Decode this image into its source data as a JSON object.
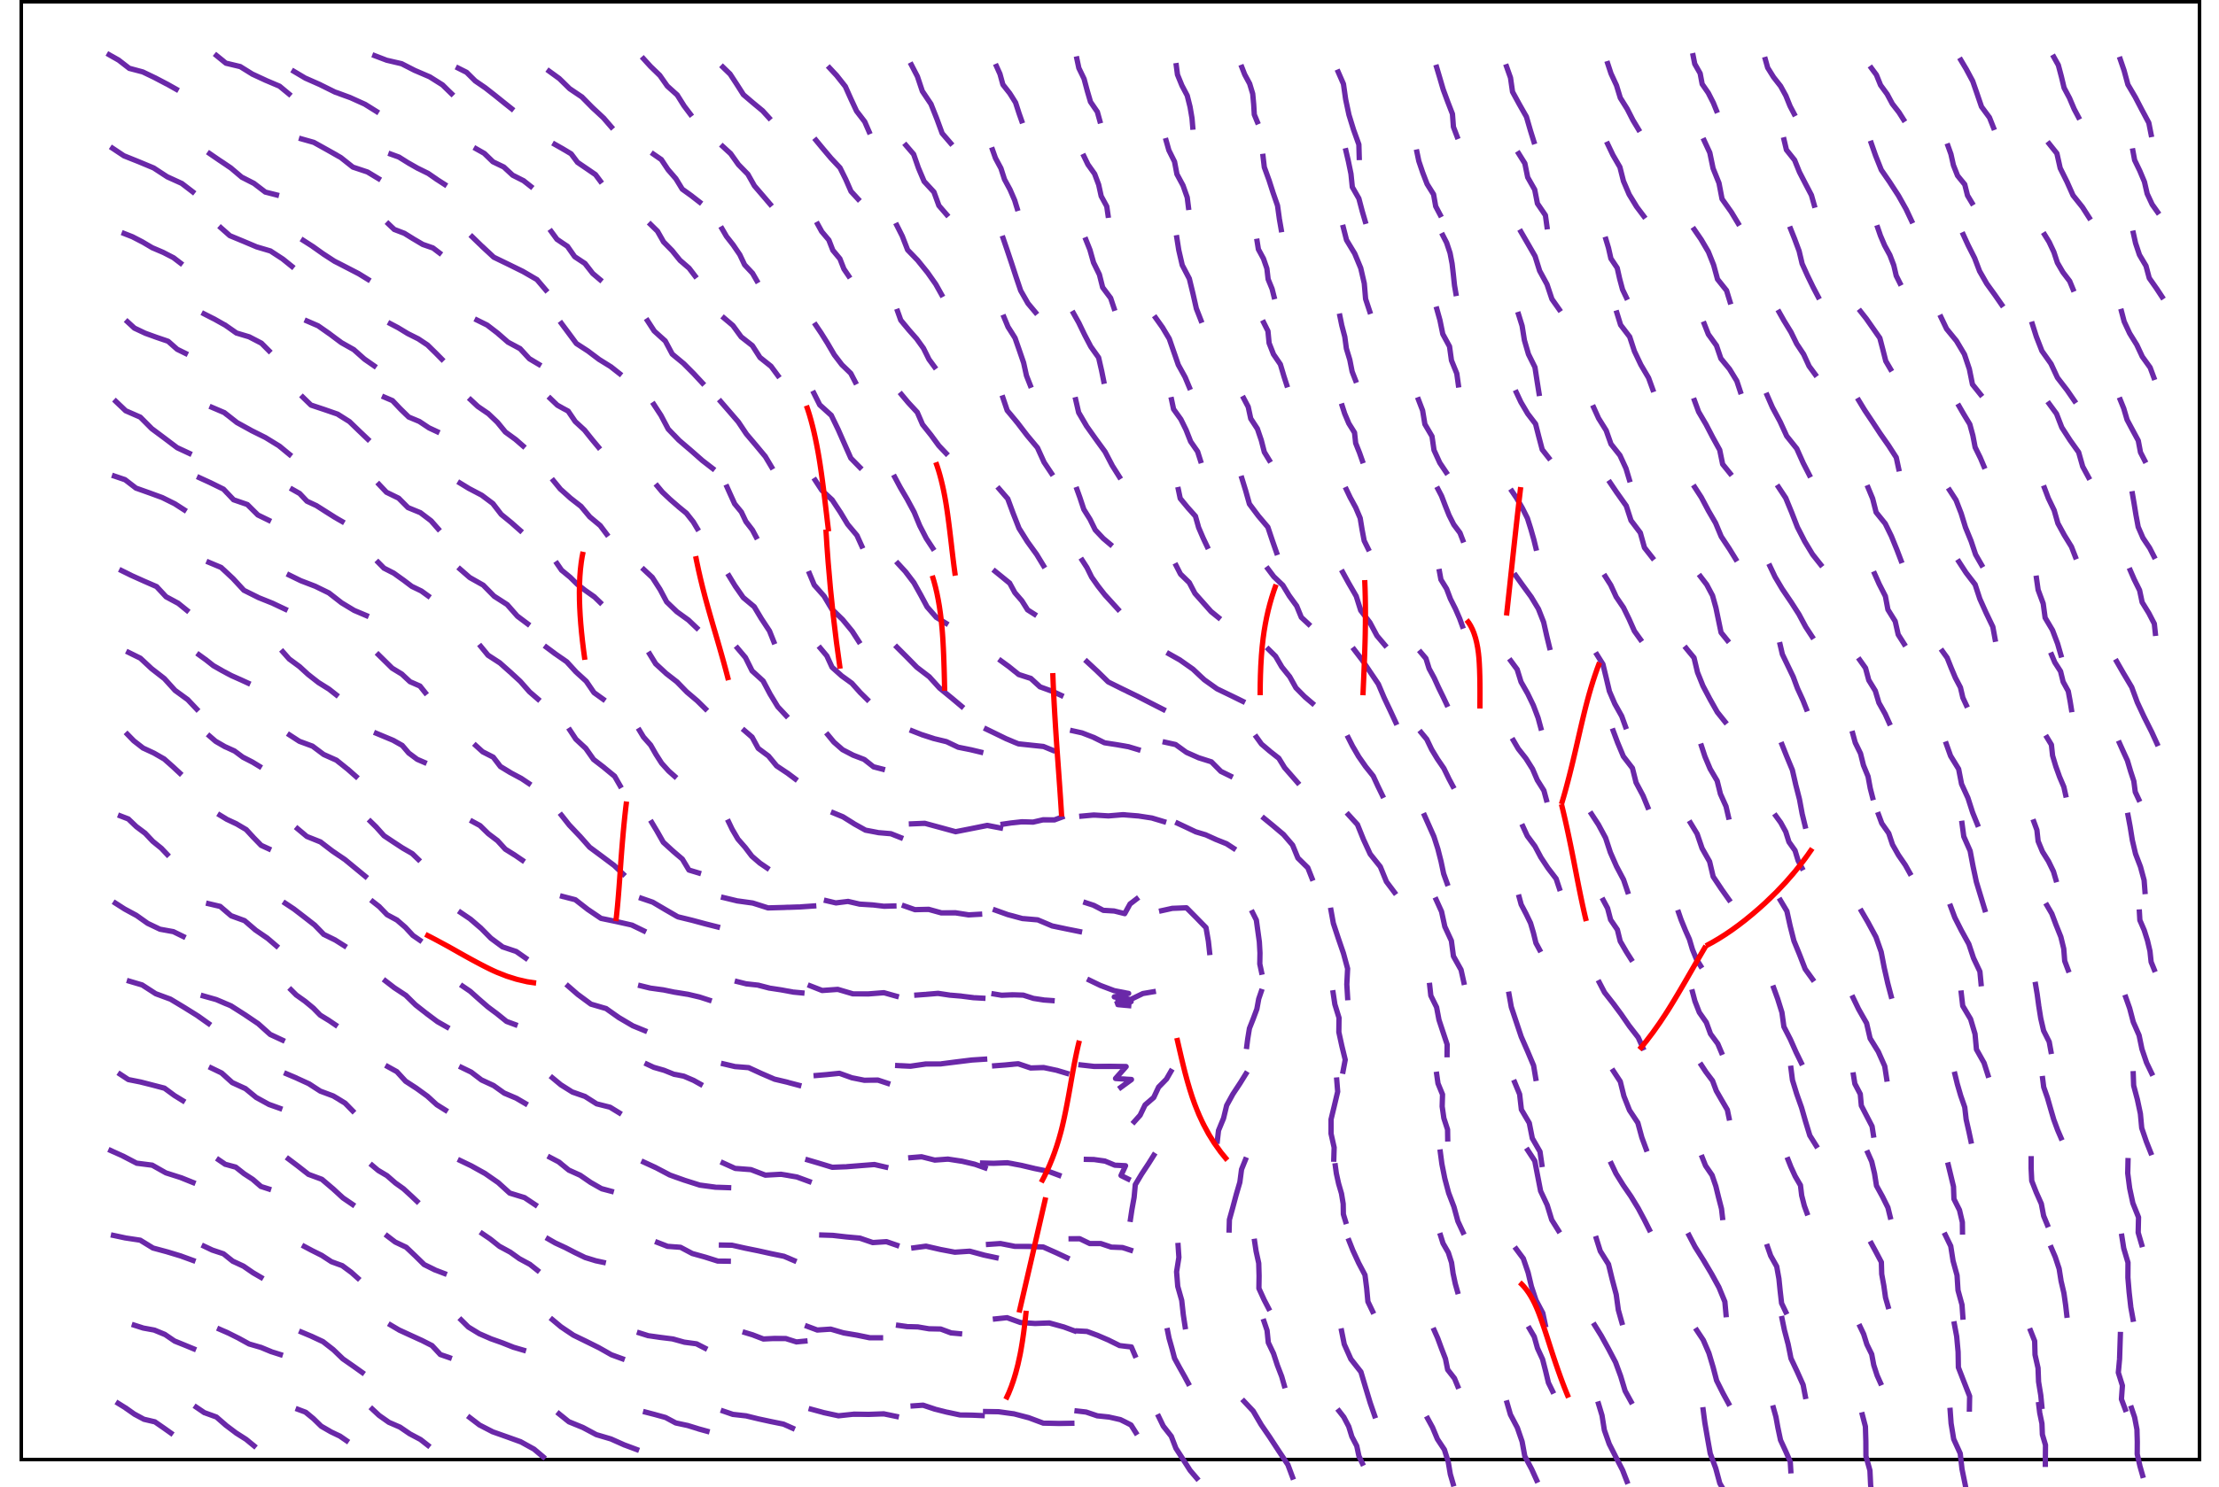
{
  "figure": {
    "description_visible_text": "",
    "colors": {
      "background": "#ffffff",
      "frame": "#000000",
      "stroke_primary": "#6a28a8",
      "stroke_highlight": "#ff0000"
    },
    "legend": null
  },
  "chart_data": {
    "type": "flow-field",
    "title": "",
    "xlabel": "",
    "ylabel": "",
    "grid": false,
    "series": [
      {
        "color": "#6a28a8",
        "style": "curved segments"
      },
      {
        "color": "#ff0000",
        "style": "curved segments"
      }
    ]
  }
}
